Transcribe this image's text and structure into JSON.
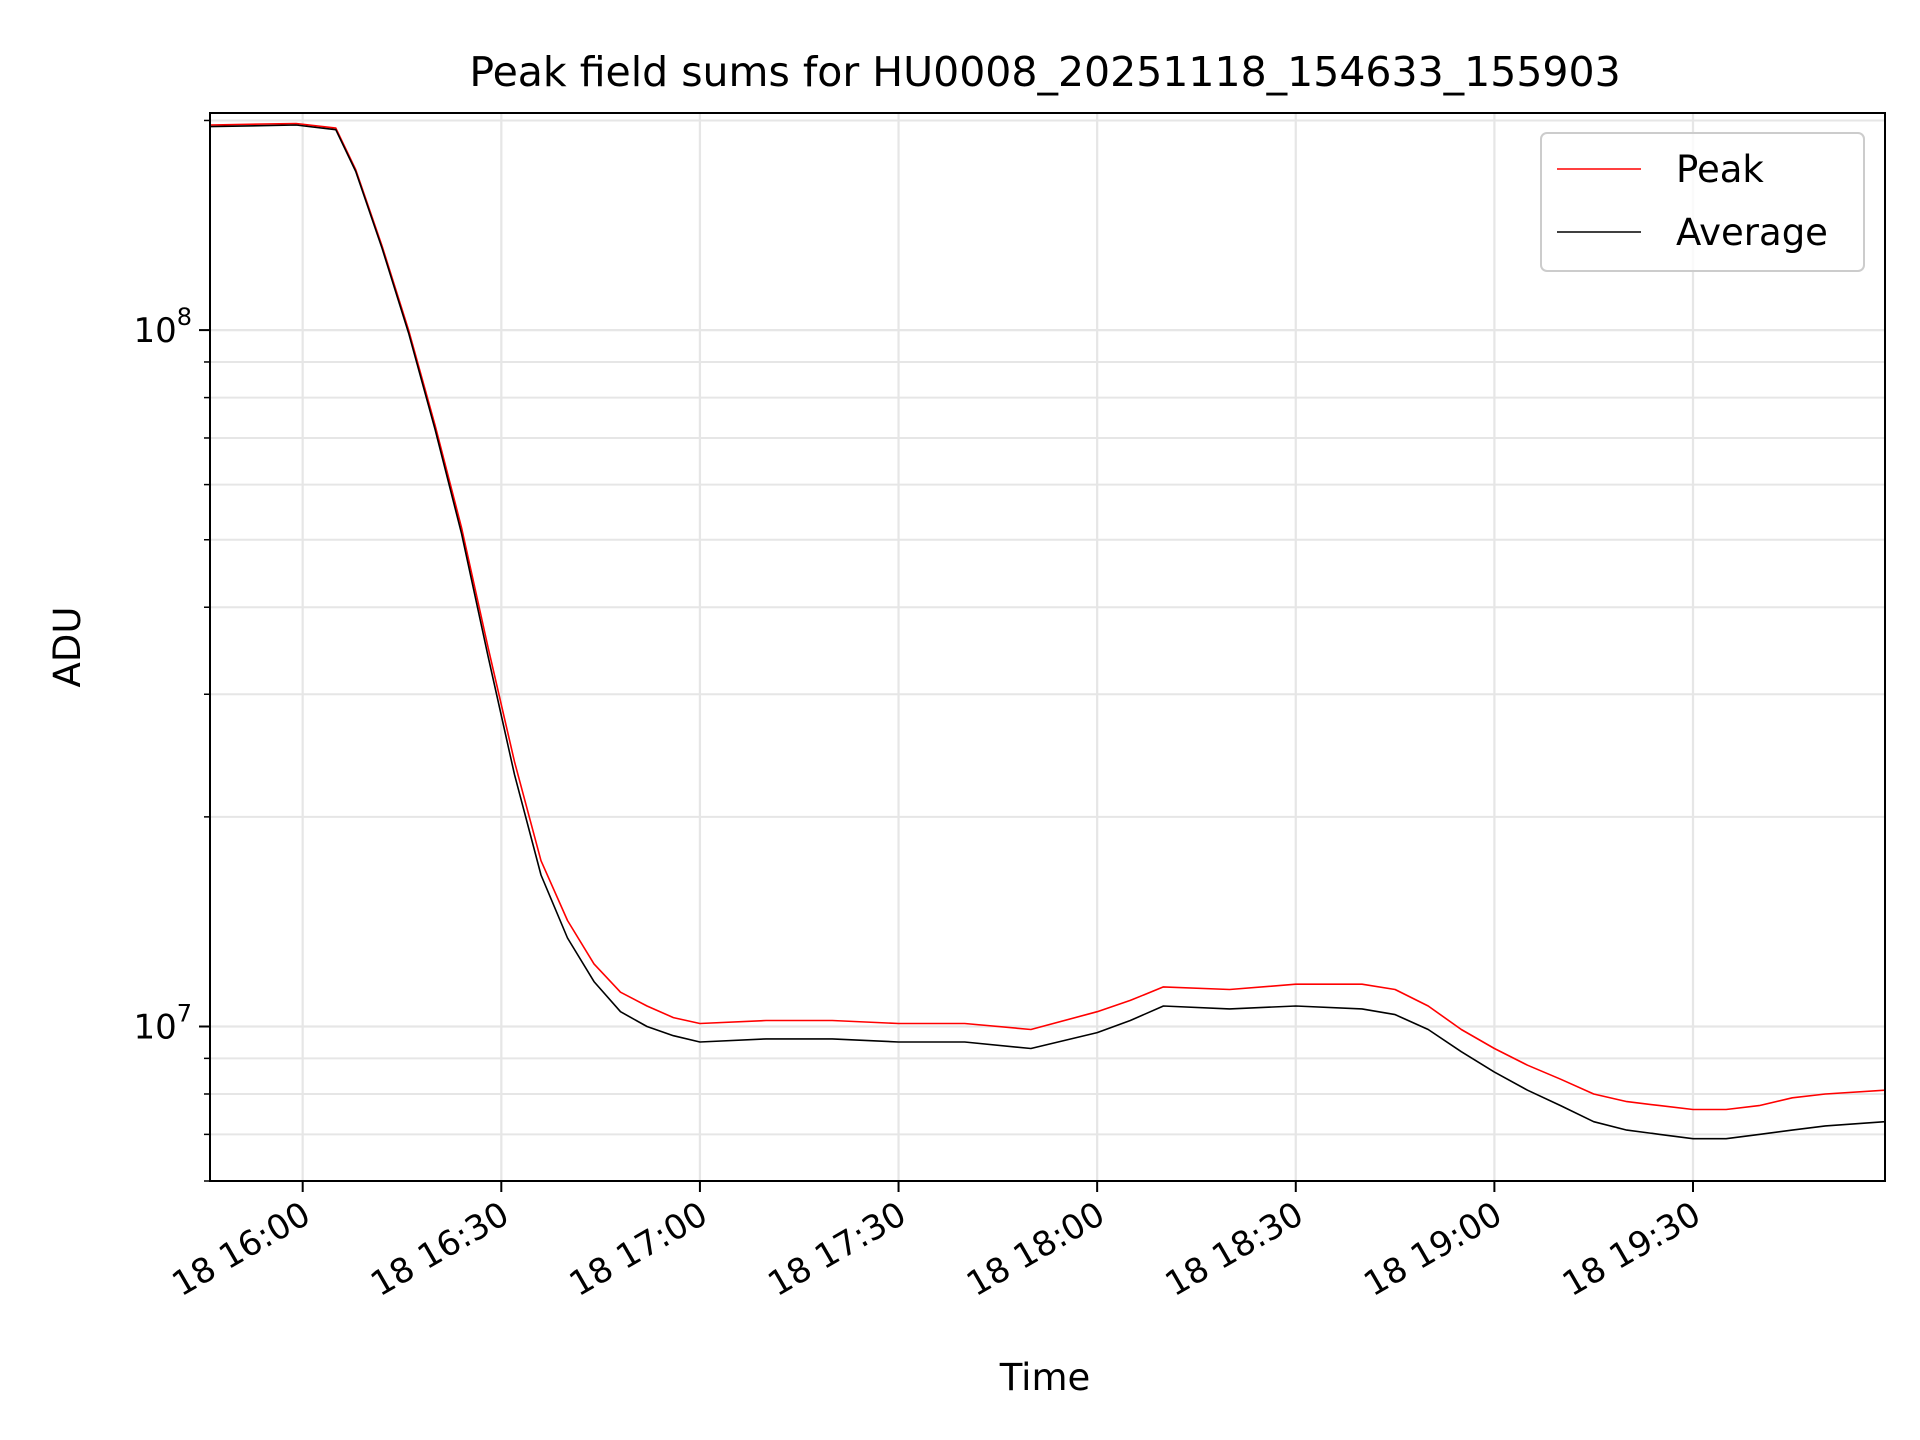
{
  "chart_data": {
    "type": "line",
    "title": "Peak field sums for HU0008_20251118_154633_155903",
    "xlabel": "Time",
    "ylabel": "ADU",
    "x_axis": {
      "kind": "time",
      "xlim": [
        "18 15:46",
        "18 19:59"
      ],
      "ticks": [
        "18 16:00",
        "18 16:30",
        "18 17:00",
        "18 17:30",
        "18 18:00",
        "18 18:30",
        "18 19:00",
        "18 19:30"
      ]
    },
    "y_axis": {
      "scale": "log",
      "ylim": [
        6000000.0,
        205000000.0
      ],
      "major_ticks": [
        {
          "value": 10000000.0,
          "base": "10",
          "exp": "7"
        },
        {
          "value": 100000000.0,
          "base": "10",
          "exp": "8"
        }
      ]
    },
    "grid": true,
    "legend": {
      "placement": "top-right"
    },
    "series": [
      {
        "name": "Peak",
        "color": "#ff0000",
        "x": [
          "18 15:46",
          "18 15:59",
          "18 16:05",
          "18 16:08",
          "18 16:12",
          "18 16:16",
          "18 16:20",
          "18 16:24",
          "18 16:28",
          "18 16:32",
          "18 16:36",
          "18 16:40",
          "18 16:44",
          "18 16:48",
          "18 16:52",
          "18 16:56",
          "18 17:00",
          "18 17:10",
          "18 17:20",
          "18 17:30",
          "18 17:40",
          "18 17:50",
          "18 18:00",
          "18 18:05",
          "18 18:10",
          "18 18:20",
          "18 18:30",
          "18 18:40",
          "18 18:45",
          "18 18:50",
          "18 18:55",
          "18 19:00",
          "18 19:05",
          "18 19:10",
          "18 19:15",
          "18 19:20",
          "18 19:25",
          "18 19:30",
          "18 19:35",
          "18 19:40",
          "18 19:45",
          "18 19:50",
          "18 19:59"
        ],
        "y": [
          197000000,
          198000000,
          195000000,
          170000000,
          132000000,
          100000000,
          73000000,
          52000000,
          35000000,
          24000000,
          17300000,
          14200000,
          12300000,
          11200000,
          10700000,
          10300000,
          10100000,
          10200000,
          10200000,
          10100000,
          10100000,
          9900000,
          10500000,
          10900000,
          11400000,
          11300000,
          11500000,
          11500000,
          11300000,
          10700000,
          9900000,
          9300000,
          8800000,
          8400000,
          8000000,
          7800000,
          7700000,
          7600000,
          7600000,
          7700000,
          7900000,
          8000000,
          8100000
        ]
      },
      {
        "name": "Average",
        "color": "#000000",
        "x": [
          "18 15:46",
          "18 15:59",
          "18 16:05",
          "18 16:08",
          "18 16:12",
          "18 16:16",
          "18 16:20",
          "18 16:24",
          "18 16:28",
          "18 16:32",
          "18 16:36",
          "18 16:40",
          "18 16:44",
          "18 16:48",
          "18 16:52",
          "18 16:56",
          "18 17:00",
          "18 17:10",
          "18 17:20",
          "18 17:30",
          "18 17:40",
          "18 17:50",
          "18 18:00",
          "18 18:05",
          "18 18:10",
          "18 18:20",
          "18 18:30",
          "18 18:40",
          "18 18:45",
          "18 18:50",
          "18 18:55",
          "18 19:00",
          "18 19:05",
          "18 19:10",
          "18 19:15",
          "18 19:20",
          "18 19:25",
          "18 19:30",
          "18 19:35",
          "18 19:40",
          "18 19:45",
          "18 19:50",
          "18 19:59"
        ],
        "y": [
          196000000,
          197000000,
          194000000,
          169000000,
          131000000,
          99000000,
          72000000,
          51000000,
          34000000,
          23000000,
          16500000,
          13400000,
          11600000,
          10500000,
          10000000,
          9700000,
          9500000,
          9600000,
          9600000,
          9500000,
          9500000,
          9300000,
          9800000,
          10200000,
          10700000,
          10600000,
          10700000,
          10600000,
          10400000,
          9900000,
          9200000,
          8600000,
          8100000,
          7700000,
          7300000,
          7100000,
          7000000,
          6900000,
          6900000,
          7000000,
          7100000,
          7200000,
          7300000
        ]
      }
    ]
  }
}
